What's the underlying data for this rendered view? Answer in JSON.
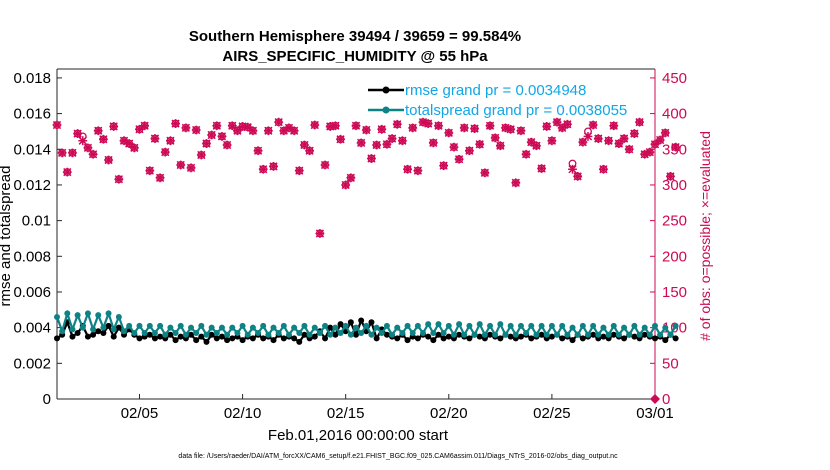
{
  "chart_data": {
    "type": "line",
    "title": "Southern Hemisphere 39494 / 39659 = 99.584%",
    "subtitle": "AIRS_SPECIFIC_HUMIDITY @ 55 hPa",
    "xlabel": "Feb.01,2016 00:00:00 start",
    "ylabel_left": "rmse and totalspread",
    "ylabel_right": "# of obs: o=possible; ×=evaluated",
    "footnote": "data file: /Users/raeder/DAI/ATM_forcXX/CAM6_setup/f.e21.FHIST_BGC.f09_025.CAM6assim.011/Diags_NTrS_2016-02/obs_diag_output.nc",
    "x_tick_labels": [
      "02/05",
      "02/10",
      "02/15",
      "02/20",
      "02/25",
      "03/01"
    ],
    "x_tick_days": [
      5,
      10,
      15,
      20,
      25,
      30
    ],
    "xlim_days": [
      1,
      30
    ],
    "ylim_left": [
      0,
      0.0185
    ],
    "ylim_right": [
      0,
      462.5
    ],
    "y_left_tick_labels": [
      "0",
      "0.002",
      "0.004",
      "0.006",
      "0.008",
      "0.01",
      "0.012",
      "0.014",
      "0.016",
      "0.018"
    ],
    "y_right_tick_labels": [
      "0",
      "50",
      "100",
      "150",
      "200",
      "250",
      "300",
      "350",
      "400",
      "450"
    ],
    "grid": false,
    "legend_position": "top-right",
    "colors": {
      "rmse": "#000000",
      "totalspread": "#0e8285",
      "obs": "#cc0a55",
      "legend_text": "#11a6e6"
    },
    "series": [
      {
        "name": "rmse grand pr = 0.0034948",
        "axis": "left",
        "x_start_day": 1,
        "x_step_days": 0.25,
        "values": [
          0.0034,
          0.0036,
          0.0043,
          0.0035,
          0.0037,
          0.0041,
          0.0035,
          0.0036,
          0.0038,
          0.0037,
          0.0041,
          0.0035,
          0.004,
          0.0036,
          0.0039,
          0.0036,
          0.0034,
          0.0035,
          0.0036,
          0.0034,
          0.0035,
          0.0034,
          0.0036,
          0.0033,
          0.0035,
          0.0034,
          0.0036,
          0.0033,
          0.0035,
          0.0032,
          0.0036,
          0.0034,
          0.0035,
          0.0033,
          0.0034,
          0.0035,
          0.0033,
          0.0035,
          0.0034,
          0.0036,
          0.0034,
          0.0035,
          0.0033,
          0.0036,
          0.0034,
          0.0035,
          0.0034,
          0.0032,
          0.0036,
          0.0034,
          0.0035,
          0.0038,
          0.0034,
          0.004,
          0.0036,
          0.0042,
          0.0038,
          0.0043,
          0.0036,
          0.0044,
          0.0038,
          0.0043,
          0.0034,
          0.0039,
          0.0036,
          0.0035,
          0.0034,
          0.0036,
          0.0033,
          0.0035,
          0.0034,
          0.0036,
          0.0035,
          0.0033,
          0.0036,
          0.0034,
          0.0035,
          0.0034,
          0.0036,
          0.0035,
          0.0034,
          0.0036,
          0.0035,
          0.0034,
          0.0036,
          0.0035,
          0.0034,
          0.0036,
          0.0035,
          0.0034,
          0.0035,
          0.0036,
          0.0034,
          0.0035,
          0.0036,
          0.0034,
          0.0035,
          0.0036,
          0.0034,
          0.0035,
          0.0033,
          0.0036,
          0.0034,
          0.0035,
          0.0036,
          0.0034,
          0.0035,
          0.0034,
          0.0036,
          0.0035,
          0.0034,
          0.0036,
          0.0035,
          0.0034,
          0.0036,
          0.0035,
          0.0034,
          0.0035,
          0.0033,
          0.0036,
          0.0034
        ]
      },
      {
        "name": "totalspread grand pr = 0.0038055",
        "axis": "left",
        "x_start_day": 1,
        "x_step_days": 0.25,
        "values": [
          0.0046,
          0.0038,
          0.0048,
          0.0039,
          0.0047,
          0.004,
          0.0048,
          0.0039,
          0.0047,
          0.004,
          0.0048,
          0.0039,
          0.0046,
          0.0038,
          0.0041,
          0.0037,
          0.0041,
          0.0037,
          0.0041,
          0.0037,
          0.0041,
          0.0036,
          0.004,
          0.0037,
          0.0041,
          0.0036,
          0.004,
          0.0037,
          0.0041,
          0.0036,
          0.004,
          0.0037,
          0.004,
          0.0036,
          0.004,
          0.0037,
          0.0041,
          0.0036,
          0.004,
          0.0037,
          0.0041,
          0.0036,
          0.004,
          0.0037,
          0.0041,
          0.0036,
          0.004,
          0.0037,
          0.0041,
          0.0036,
          0.004,
          0.0037,
          0.0041,
          0.0036,
          0.004,
          0.0037,
          0.0041,
          0.0036,
          0.004,
          0.0037,
          0.0041,
          0.0036,
          0.004,
          0.0037,
          0.0041,
          0.0036,
          0.004,
          0.0037,
          0.0041,
          0.0037,
          0.0041,
          0.0037,
          0.0042,
          0.0037,
          0.0042,
          0.0037,
          0.0041,
          0.0036,
          0.0042,
          0.0036,
          0.0041,
          0.0036,
          0.0042,
          0.0036,
          0.0041,
          0.0036,
          0.0042,
          0.0036,
          0.0041,
          0.0036,
          0.0041,
          0.0037,
          0.0041,
          0.0036,
          0.0041,
          0.0036,
          0.0041,
          0.0036,
          0.0041,
          0.0036,
          0.004,
          0.0036,
          0.0041,
          0.0036,
          0.0041,
          0.0036,
          0.004,
          0.0036,
          0.0041,
          0.0036,
          0.004,
          0.0036,
          0.0041,
          0.0036,
          0.004,
          0.0036,
          0.0041,
          0.0036,
          0.004,
          0.0036,
          0.0041
        ]
      },
      {
        "name": "obs possible",
        "axis": "right",
        "marker": "circle",
        "x_start_day": 1,
        "x_step_days": 0.25,
        "values": [
          384,
          345,
          318,
          345,
          372,
          368,
          352,
          343,
          376,
          364,
          335,
          382,
          308,
          362,
          358,
          352,
          378,
          383,
          320,
          365,
          310,
          346,
          362,
          386,
          328,
          380,
          324,
          377,
          342,
          358,
          370,
          383,
          368,
          356,
          383,
          376,
          382,
          381,
          376,
          348,
          322,
          376,
          326,
          388,
          376,
          380,
          376,
          320,
          356,
          348,
          384,
          232,
          328,
          382,
          383,
          364,
          300,
          310,
          383,
          359,
          377,
          337,
          356,
          378,
          357,
          365,
          385,
          362,
          322,
          380,
          320,
          388,
          386,
          359,
          383,
          327,
          373,
          353,
          336,
          380,
          348,
          379,
          357,
          317,
          383,
          366,
          355,
          380,
          378,
          303,
          376,
          343,
          360,
          355,
          323,
          382,
          362,
          388,
          380,
          385,
          330,
          312,
          360,
          375,
          384,
          365,
          322,
          362,
          383,
          358,
          365,
          350,
          372,
          388,
          343,
          346,
          357,
          363,
          373,
          312,
          353
        ]
      },
      {
        "name": "obs evaluated",
        "axis": "right",
        "marker": "asterisk",
        "x_start_day": 1,
        "x_step_days": 0.25,
        "values": [
          384,
          345,
          318,
          345,
          372,
          362,
          352,
          343,
          376,
          364,
          335,
          382,
          308,
          362,
          358,
          352,
          378,
          383,
          320,
          365,
          310,
          346,
          362,
          386,
          328,
          380,
          324,
          377,
          342,
          358,
          370,
          383,
          368,
          356,
          383,
          376,
          382,
          381,
          376,
          348,
          322,
          376,
          326,
          388,
          376,
          380,
          376,
          320,
          356,
          348,
          384,
          232,
          328,
          382,
          383,
          364,
          300,
          310,
          383,
          359,
          377,
          337,
          356,
          378,
          357,
          365,
          385,
          362,
          322,
          380,
          320,
          388,
          386,
          359,
          383,
          327,
          373,
          353,
          336,
          380,
          348,
          379,
          357,
          317,
          383,
          366,
          355,
          380,
          378,
          303,
          376,
          343,
          360,
          355,
          323,
          382,
          362,
          388,
          380,
          385,
          322,
          312,
          360,
          368,
          384,
          365,
          322,
          362,
          383,
          358,
          365,
          350,
          372,
          388,
          343,
          346,
          357,
          363,
          373,
          312,
          353
        ]
      }
    ]
  }
}
